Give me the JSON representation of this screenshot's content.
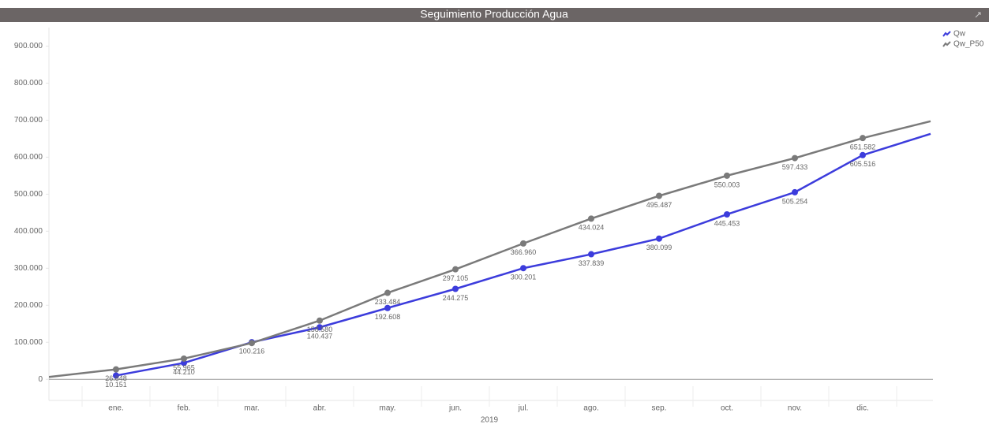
{
  "chart_data": {
    "type": "line",
    "title": "Seguimiento Producción Agua",
    "x_label": "2019",
    "categories": [
      null,
      "ene.",
      "feb.",
      "mar.",
      "abr.",
      "may.",
      "jun.",
      "jul.",
      "ago.",
      "sep.",
      "oct.",
      "nov.",
      "dic.",
      null
    ],
    "series": [
      {
        "name": "Qw",
        "color": "#3c3cdc",
        "values": [
          null,
          10151,
          44210,
          100216,
          140437,
          192608,
          244275,
          300201,
          337839,
          380099,
          445453,
          505254,
          605516,
          663000
        ],
        "value_labels": [
          null,
          "10.151",
          "44.210",
          "100.216",
          "140.437",
          "192.608",
          "244.275",
          "300.201",
          "337.839",
          "380.099",
          "445.453",
          "505.254",
          "605.516",
          null
        ]
      },
      {
        "name": "Qw_P50",
        "color": "#7a7a7a",
        "values": [
          6000,
          26848,
          55965,
          98000,
          158580,
          233484,
          297105,
          366960,
          434024,
          495487,
          550003,
          597433,
          651582,
          697000
        ],
        "value_labels": [
          null,
          "26.848",
          "55.965",
          null,
          "158.580",
          "233.484",
          "297.105",
          "366.960",
          "434.024",
          "495.487",
          "550.003",
          "597.433",
          "651.582",
          null
        ]
      }
    ],
    "ylim": [
      -57000,
      950000
    ],
    "yticks": [
      0,
      {
        "value": 100000,
        "label": "100.000"
      },
      {
        "value": 200000,
        "label": "200.000"
      },
      {
        "value": 300000,
        "label": "300.000"
      },
      {
        "value": 400000,
        "label": "400.000"
      },
      {
        "value": 500000,
        "label": "500.000"
      },
      {
        "value": 600000,
        "label": "600.000"
      },
      {
        "value": 700000,
        "label": "700.000"
      },
      {
        "value": 800000,
        "label": "800.000"
      },
      {
        "value": 900000,
        "label": "900.000"
      }
    ],
    "legend": "top-right"
  }
}
